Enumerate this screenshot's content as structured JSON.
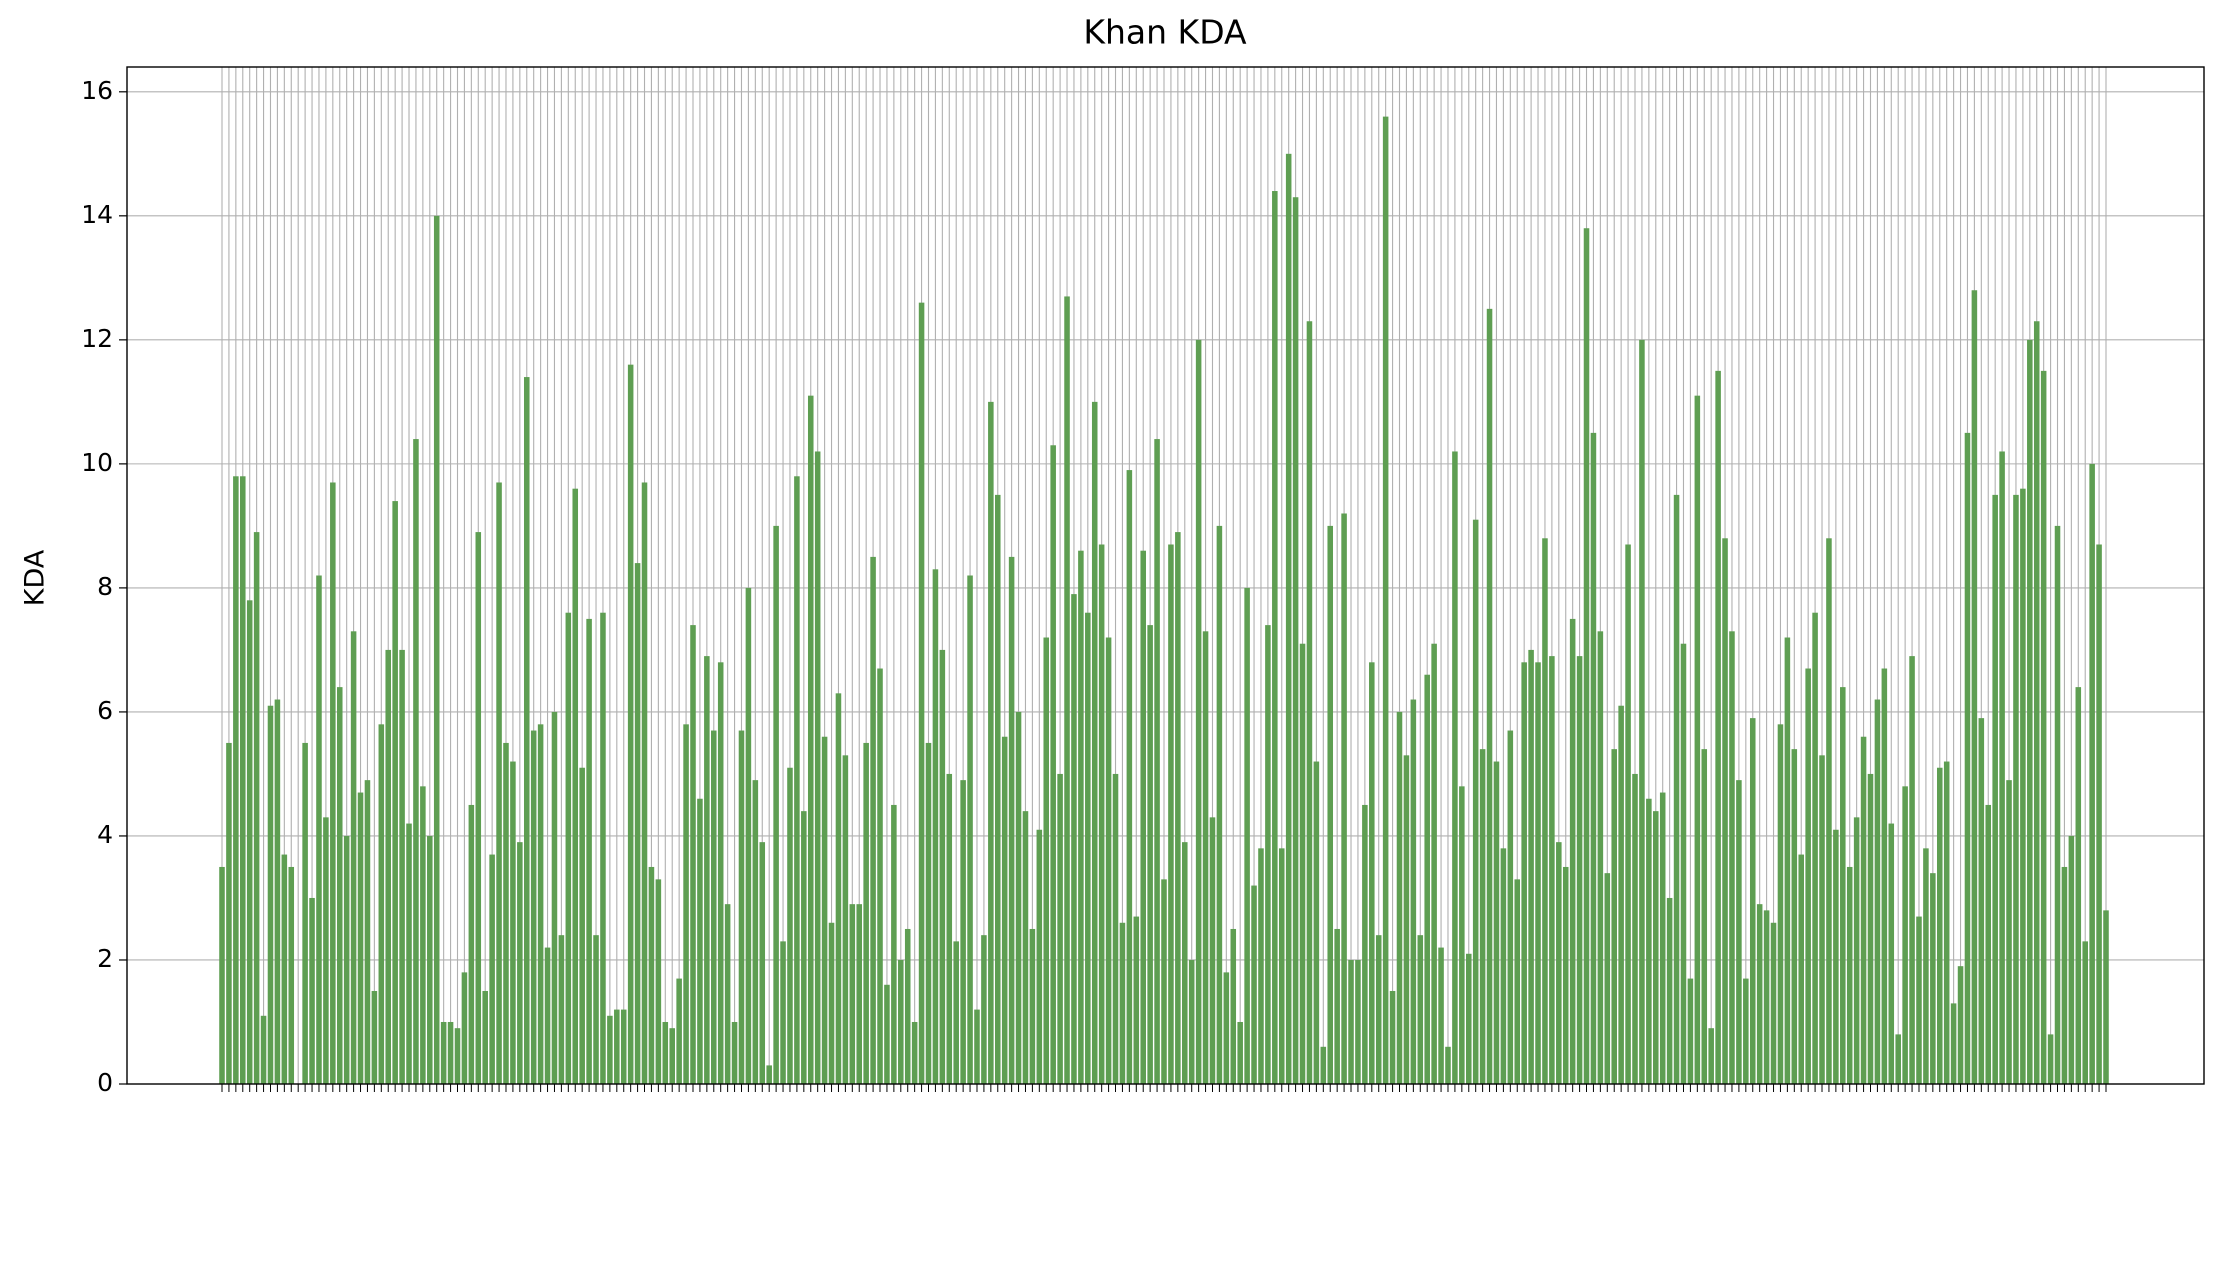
{
  "chart_data": {
    "type": "bar",
    "title": "Khan KDA",
    "y_label": "KDA",
    "categories": [
      null,
      null,
      null,
      null,
      null,
      null,
      null,
      null,
      null,
      null,
      null,
      null,
      null,
      null,
      null,
      null,
      null,
      null,
      null,
      null,
      null,
      null,
      null,
      null,
      null,
      null,
      null,
      null,
      null,
      null,
      null,
      null,
      null,
      null,
      null,
      null,
      null,
      null,
      null,
      null,
      null,
      null,
      null,
      null,
      null,
      null,
      null,
      null,
      null,
      null,
      null,
      null,
      null,
      null,
      null,
      null,
      null,
      null,
      null,
      null,
      null,
      null,
      null,
      null,
      null,
      null,
      null,
      null,
      null,
      null,
      null,
      null,
      null,
      null,
      null,
      null,
      null,
      null,
      null,
      null,
      null,
      null,
      null,
      null,
      null,
      null,
      null,
      null,
      null,
      null,
      null,
      null,
      null,
      null,
      null,
      null,
      null,
      null,
      null,
      null,
      null,
      null,
      null,
      null,
      null,
      null,
      null,
      null,
      null,
      null,
      null,
      null,
      null,
      null,
      null,
      null,
      null,
      null,
      null,
      null,
      null,
      null,
      null,
      null,
      null,
      null,
      null,
      null,
      null,
      null,
      null,
      null,
      null,
      null,
      null,
      null,
      null,
      null,
      null,
      null,
      null,
      null,
      null,
      null,
      null,
      null,
      null,
      null,
      null,
      null,
      null,
      null,
      null,
      null,
      null,
      null,
      null,
      null,
      null,
      null,
      null,
      null,
      null,
      null,
      null,
      null,
      null,
      null,
      null,
      null,
      null,
      null,
      null,
      null,
      null,
      null,
      null,
      null,
      null,
      null,
      null,
      null,
      null,
      null,
      null,
      null,
      null,
      null,
      null,
      null,
      null,
      null,
      null,
      null,
      null,
      null,
      null,
      null,
      null,
      null,
      null,
      null,
      null,
      null,
      null,
      null,
      null,
      null,
      null,
      null,
      null,
      null,
      null,
      null,
      null,
      null,
      null,
      null,
      null,
      null,
      null,
      null,
      null,
      null,
      null,
      null,
      null,
      null,
      null,
      null,
      null,
      null,
      null,
      null,
      null,
      null,
      null,
      null,
      null,
      null,
      null,
      null,
      null,
      null,
      null,
      null,
      null,
      null,
      null,
      null,
      null,
      null,
      null,
      null,
      null,
      null,
      null,
      null,
      null,
      null,
      null,
      null,
      null,
      null,
      null,
      null,
      null,
      null,
      null,
      null,
      null,
      null,
      null
    ],
    "values": [
      3.5,
      5.5,
      9.8,
      9.8,
      7.8,
      8.9,
      1.1,
      6.1,
      6.2,
      3.7,
      3.5,
      0,
      5.5,
      3.0,
      8.2,
      4.3,
      9.7,
      6.4,
      4.0,
      7.3,
      4.7,
      4.9,
      1.5,
      5.8,
      7.0,
      9.4,
      7.0,
      4.2,
      10.4,
      4.8,
      4.0,
      14.0,
      1.0,
      1.0,
      0.9,
      1.8,
      4.5,
      8.9,
      1.5,
      3.7,
      9.7,
      5.5,
      5.2,
      3.9,
      11.4,
      5.7,
      5.8,
      2.2,
      6.0,
      2.4,
      7.6,
      9.6,
      5.1,
      7.5,
      2.4,
      7.6,
      1.1,
      1.2,
      1.2,
      11.6,
      8.4,
      9.7,
      3.5,
      3.3,
      1.0,
      0.9,
      1.7,
      5.8,
      7.4,
      4.6,
      6.9,
      5.7,
      6.8,
      2.9,
      1.0,
      5.7,
      8.0,
      4.9,
      3.9,
      0.3,
      9.0,
      2.3,
      5.1,
      9.8,
      4.4,
      11.1,
      10.2,
      5.6,
      2.6,
      6.3,
      5.3,
      2.9,
      2.9,
      5.5,
      8.5,
      6.7,
      1.6,
      4.5,
      2.0,
      2.5,
      1.0,
      12.6,
      5.5,
      8.3,
      7.0,
      5.0,
      2.3,
      4.9,
      8.2,
      1.2,
      2.4,
      11.0,
      9.5,
      5.6,
      8.5,
      6.0,
      4.4,
      2.5,
      4.1,
      7.2,
      10.3,
      5.0,
      12.7,
      7.9,
      8.6,
      7.6,
      11.0,
      8.7,
      7.2,
      5.0,
      2.6,
      9.9,
      2.7,
      8.6,
      7.4,
      10.4,
      3.3,
      8.7,
      8.9,
      3.9,
      2.0,
      12.0,
      7.3,
      4.3,
      9.0,
      1.8,
      2.5,
      1.0,
      8.0,
      3.2,
      3.8,
      7.4,
      14.4,
      3.8,
      15.0,
      14.3,
      7.1,
      12.3,
      5.2,
      0.6,
      9.0,
      2.5,
      9.2,
      2.0,
      2.0,
      4.5,
      6.8,
      2.4,
      15.6,
      1.5,
      6.0,
      5.3,
      6.2,
      2.4,
      6.6,
      7.1,
      2.2,
      0.6,
      10.2,
      4.8,
      2.1,
      9.1,
      5.4,
      12.5,
      5.2,
      3.8,
      5.7,
      3.3,
      6.8,
      7.0,
      6.8,
      8.8,
      6.9,
      3.9,
      3.5,
      7.5,
      6.9,
      13.8,
      10.5,
      7.3,
      3.4,
      5.4,
      6.1,
      8.7,
      5.0,
      12.0,
      4.6,
      4.4,
      4.7,
      3.0,
      9.5,
      7.1,
      1.7,
      11.1,
      5.4,
      0.9,
      11.5,
      8.8,
      7.3,
      4.9,
      1.7,
      5.9,
      2.9,
      2.8,
      2.6,
      5.8,
      7.2,
      5.4,
      3.7,
      6.7,
      7.6,
      5.3,
      8.8,
      4.1,
      6.4,
      3.5,
      4.3,
      5.6,
      5.0,
      6.2,
      6.7,
      4.2,
      0.8,
      4.8,
      6.9,
      2.7,
      3.8,
      3.4,
      5.1,
      5.2,
      1.3,
      1.9,
      10.5,
      12.8,
      5.9,
      4.5,
      9.5,
      10.2,
      4.9,
      9.5,
      9.6,
      12.0,
      12.3,
      11.5,
      0.8,
      9.0,
      3.5,
      4.0,
      6.4,
      2.3,
      10.0,
      8.7,
      2.8
    ],
    "color": "#5e9e52",
    "ylim": [
      0,
      16.4
    ],
    "yticks": [
      0,
      2,
      4,
      6,
      8,
      10,
      12,
      14,
      16
    ],
    "grid": true
  }
}
